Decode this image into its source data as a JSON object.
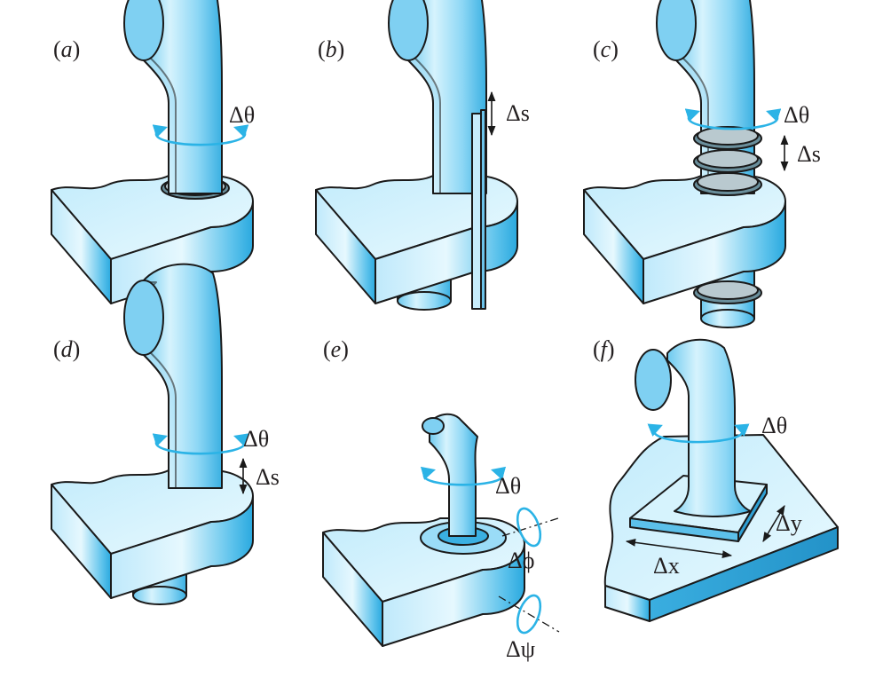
{
  "figure": {
    "panels": [
      {
        "id": "a",
        "label": "(a)",
        "letter": "a",
        "joint": "revolute",
        "annotations": [
          "Δθ"
        ]
      },
      {
        "id": "b",
        "label": "(b)",
        "letter": "b",
        "joint": "prismatic",
        "annotations": [
          "Δs"
        ]
      },
      {
        "id": "c",
        "label": "(c)",
        "letter": "c",
        "joint": "helical",
        "annotations": [
          "Δθ",
          "Δs"
        ]
      },
      {
        "id": "d",
        "label": "(d)",
        "letter": "d",
        "joint": "cylindrical",
        "annotations": [
          "Δθ",
          "Δs"
        ]
      },
      {
        "id": "e",
        "label": "(e)",
        "letter": "e",
        "joint": "spherical",
        "annotations": [
          "Δθ",
          "Δϕ",
          "Δψ"
        ]
      },
      {
        "id": "f",
        "label": "(f)",
        "letter": "f",
        "joint": "planar",
        "annotations": [
          "Δθ",
          "Δy",
          "Δx"
        ]
      }
    ]
  },
  "colors": {
    "part_light": "#d9f3fd",
    "part_mid": "#8fd8f6",
    "part_dark": "#3ab4e4",
    "rotation_arrow": "#2bb3e6",
    "outline": "#1a1a1a"
  }
}
